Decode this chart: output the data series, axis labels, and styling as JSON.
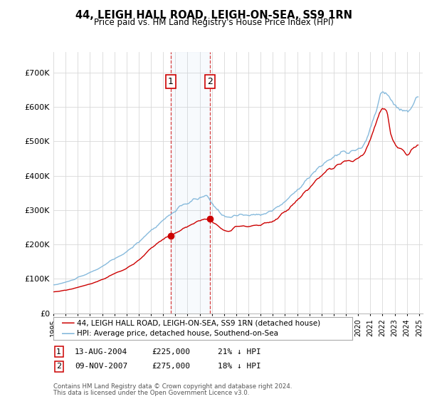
{
  "title": "44, LEIGH HALL ROAD, LEIGH-ON-SEA, SS9 1RN",
  "subtitle": "Price paid vs. HM Land Registry's House Price Index (HPI)",
  "hpi_label": "HPI: Average price, detached house, Southend-on-Sea",
  "price_label": "44, LEIGH HALL ROAD, LEIGH-ON-SEA, SS9 1RN (detached house)",
  "footer1": "Contains HM Land Registry data © Crown copyright and database right 2024.",
  "footer2": "This data is licensed under the Open Government Licence v3.0.",
  "hpi_color": "#7ab3d9",
  "price_color": "#cc0000",
  "sale1_date": "13-AUG-2004",
  "sale1_price": 225000,
  "sale1_info": "21% ↓ HPI",
  "sale2_date": "09-NOV-2007",
  "sale2_price": 275000,
  "sale2_info": "18% ↓ HPI",
  "sale1_x": 2004.617,
  "sale2_x": 2007.867,
  "ylim_bottom": 0,
  "ylim_top": 760000,
  "xlim_left": 1995.0,
  "xlim_right": 2025.3,
  "background_color": "#ffffff",
  "grid_color": "#d8d8d8"
}
